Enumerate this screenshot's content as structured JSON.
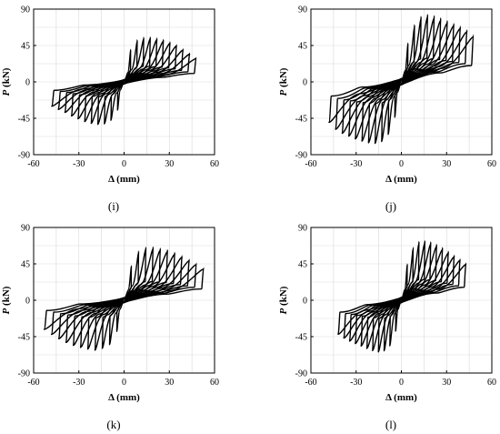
{
  "chart_data": [
    {
      "type": "line",
      "caption": "(i)",
      "xlabel": "Δ (mm)",
      "ylabel_italic": "P",
      "ylabel_unit": "(kN)",
      "xlim": [
        -60,
        60
      ],
      "ylim": [
        -90,
        90
      ],
      "xticks": [
        "-60",
        "-30",
        "0",
        "30",
        "60"
      ],
      "yticks": [
        "-90",
        "-45",
        "0",
        "45",
        "90"
      ],
      "grid": true,
      "series": [
        {
          "x": [
            0,
            5,
            10,
            15,
            20,
            25,
            30,
            35,
            40,
            45,
            48
          ],
          "y": [
            0,
            46,
            54,
            56,
            55,
            53,
            50,
            46,
            40,
            34,
            30
          ]
        },
        {
          "x": [
            0,
            -5,
            -10,
            -15,
            -20,
            -25,
            -30,
            -35,
            -40,
            -45,
            -48
          ],
          "y": [
            0,
            -40,
            -50,
            -53,
            -52,
            -50,
            -46,
            -42,
            -37,
            -33,
            -30
          ]
        }
      ]
    },
    {
      "type": "line",
      "caption": "(j)",
      "xlabel": "Δ (mm)",
      "ylabel_italic": "P",
      "ylabel_unit": "(kN)",
      "xlim": [
        -60,
        60
      ],
      "ylim": [
        -90,
        90
      ],
      "xticks": [
        "-60",
        "-30",
        "0",
        "30",
        "60"
      ],
      "yticks": [
        "-90",
        "-45",
        "0",
        "45",
        "90"
      ],
      "grid": true,
      "series": [
        {
          "x": [
            0,
            5,
            10,
            15,
            20,
            25,
            30,
            35,
            40,
            45,
            48
          ],
          "y": [
            0,
            55,
            76,
            84,
            83,
            80,
            76,
            72,
            68,
            63,
            58
          ]
        },
        {
          "x": [
            0,
            -5,
            -10,
            -15,
            -20,
            -25,
            -30,
            -35,
            -40,
            -45,
            -48
          ],
          "y": [
            0,
            -50,
            -70,
            -76,
            -76,
            -74,
            -71,
            -67,
            -63,
            -57,
            -50
          ]
        }
      ]
    },
    {
      "type": "line",
      "caption": "(k)",
      "xlabel": "Δ (mm)",
      "ylabel_italic": "P",
      "ylabel_unit": "(kN)",
      "xlim": [
        -60,
        60
      ],
      "ylim": [
        -90,
        90
      ],
      "xticks": [
        "-60",
        "-30",
        "0",
        "30",
        "60"
      ],
      "yticks": [
        "-90",
        "-45",
        "0",
        "45",
        "90"
      ],
      "grid": true,
      "series": [
        {
          "x": [
            0,
            5,
            10,
            15,
            20,
            25,
            30,
            35,
            40,
            45,
            50,
            53
          ],
          "y": [
            0,
            45,
            62,
            66,
            66,
            64,
            62,
            58,
            54,
            49,
            44,
            40
          ]
        },
        {
          "x": [
            0,
            -5,
            -10,
            -15,
            -20,
            -25,
            -30,
            -35,
            -40,
            -45,
            -50,
            -53
          ],
          "y": [
            0,
            -40,
            -56,
            -60,
            -62,
            -60,
            -58,
            -55,
            -51,
            -46,
            -40,
            -36
          ]
        }
      ]
    },
    {
      "type": "line",
      "caption": "(l)",
      "xlabel": "Δ (mm)",
      "ylabel_italic": "P",
      "ylabel_unit": "(kN)",
      "xlim": [
        -60,
        60
      ],
      "ylim": [
        -90,
        90
      ],
      "xticks": [
        "-60",
        "-30",
        "0",
        "30",
        "60"
      ],
      "yticks": [
        "-90",
        "-45",
        "0",
        "45",
        "90"
      ],
      "grid": true,
      "series": [
        {
          "x": [
            0,
            5,
            10,
            15,
            20,
            25,
            30,
            35,
            40,
            43
          ],
          "y": [
            0,
            58,
            72,
            74,
            72,
            68,
            62,
            56,
            50,
            46
          ]
        },
        {
          "x": [
            0,
            -5,
            -10,
            -15,
            -20,
            -25,
            -30,
            -35,
            -40,
            -42
          ],
          "y": [
            0,
            -50,
            -62,
            -64,
            -62,
            -58,
            -54,
            -50,
            -45,
            -42
          ]
        }
      ]
    }
  ]
}
